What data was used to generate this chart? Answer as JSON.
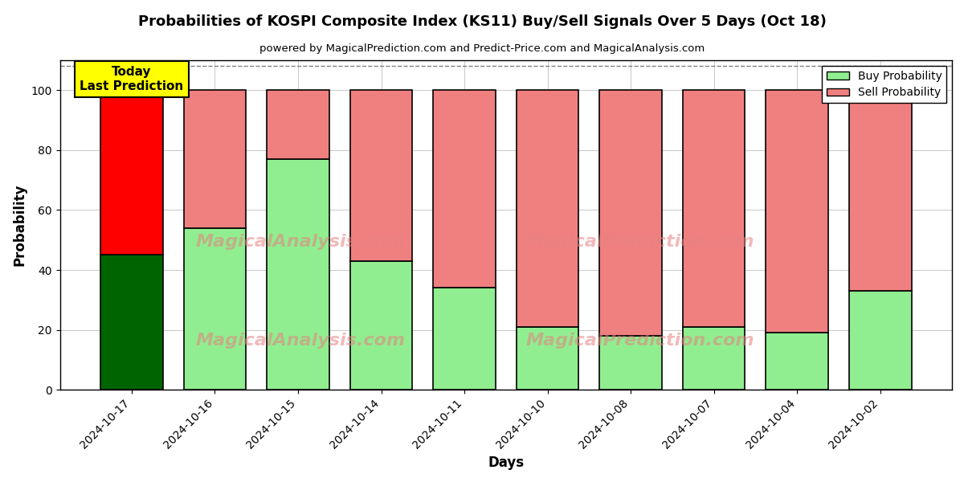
{
  "title": "Probabilities of KOSPI Composite Index (KS11) Buy/Sell Signals Over 5 Days (Oct 18)",
  "subtitle": "powered by MagicalPrediction.com and Predict-Price.com and MagicalAnalysis.com",
  "xlabel": "Days",
  "ylabel": "Probability",
  "dates": [
    "2024-10-17",
    "2024-10-16",
    "2024-10-15",
    "2024-10-14",
    "2024-10-11",
    "2024-10-10",
    "2024-10-08",
    "2024-10-07",
    "2024-10-04",
    "2024-10-02"
  ],
  "buy_values": [
    45,
    54,
    77,
    43,
    34,
    21,
    18,
    21,
    19,
    33
  ],
  "sell_values": [
    55,
    46,
    23,
    57,
    66,
    79,
    82,
    79,
    81,
    67
  ],
  "buy_colors_dark": "#006400",
  "buy_colors_light": "#90EE90",
  "sell_colors_dark": "#FF0000",
  "sell_colors_light": "#F08080",
  "today_box_color": "#FFFF00",
  "today_text": "Today\nLast Prediction",
  "ylim": [
    0,
    110
  ],
  "dashed_line_y": 108,
  "watermark_text1": "MagicalAnalysis.com",
  "watermark_text2": "MagicalPrediction.com",
  "legend_buy_label": "Buy Probability",
  "legend_sell_label": "Sell Probability",
  "bar_edgecolor": "#000000",
  "bar_linewidth": 1.2,
  "fig_bg_color": "#ffffff",
  "plot_bg_color": "#ffffff"
}
